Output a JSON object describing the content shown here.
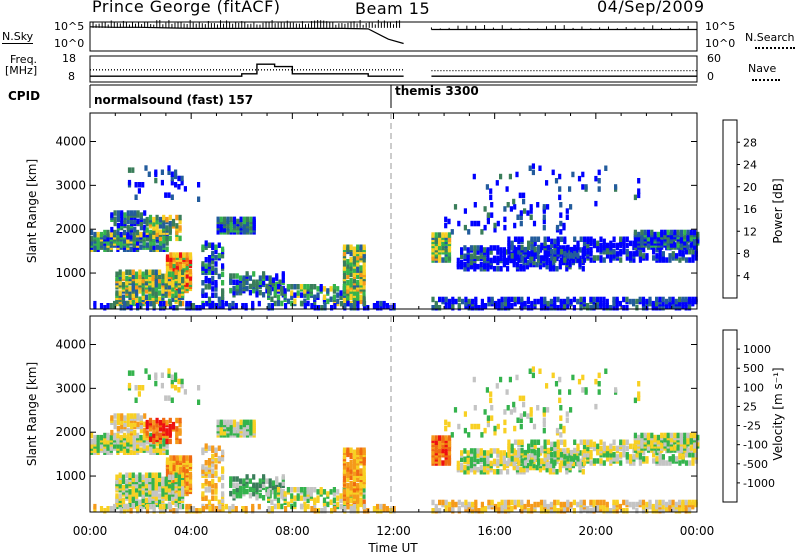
{
  "header": {
    "station": "Prince George (fitACF)",
    "beam": "Beam 15",
    "date": "04/Sep/2009"
  },
  "panel_labels": {
    "nsky": "N.Sky",
    "nsearch": "N.Search",
    "freq_line1": "Freq.",
    "freq_line2": "[MHz]",
    "nave": "Nave",
    "cpid": "CPID",
    "cpid_1": "normalsound (fast) 157",
    "cpid_2": "themis 3300",
    "nsky_tick_hi": "10^5",
    "nsky_tick_lo": "10^0",
    "nsearch_tick_hi": "10^5",
    "nsearch_tick_lo": "10^0"
  },
  "colors": {
    "power": [
      "#0000ff",
      "#235c9c",
      "#3a7d5a",
      "#34b34d",
      "#f8d023",
      "#f59a1a",
      "#f06a10",
      "#ee1010"
    ],
    "velocity": [
      "#ee1010",
      "#f06a10",
      "#f59a1a",
      "#f8d023",
      "#c4c4c4",
      "#34b34d",
      "#3a7d5a",
      "#235c9c",
      "#0000ff"
    ]
  },
  "chart_data": [
    {
      "type": "line",
      "panel": "noise",
      "y_left_label": "N.Sky",
      "y_right_label": "N.Search",
      "x_range_hours": [
        0,
        24
      ],
      "gap_hours": [
        12.4,
        13.5
      ],
      "series": [
        {
          "name": "N.Sky",
          "x": [
            0,
            1,
            2,
            3,
            4,
            5,
            6,
            7,
            8,
            9,
            10,
            11,
            11.8,
            12.4
          ],
          "y": [
            4.3,
            4.2,
            4.2,
            4.1,
            4.0,
            4.0,
            4.0,
            4.0,
            4.0,
            4.0,
            4.0,
            3.9,
            2.0,
            1.2
          ]
        },
        {
          "name": "N.Search",
          "x": [
            13.5,
            15,
            17,
            19,
            21,
            23,
            24
          ],
          "y": [
            3.8,
            3.8,
            3.8,
            3.8,
            3.8,
            3.8,
            3.8
          ]
        }
      ]
    },
    {
      "type": "line",
      "panel": "frequency",
      "y_left_label": "Freq. [MHz]",
      "y_left_ticks": [
        "18",
        "8"
      ],
      "y_right_label": "Nave",
      "y_right_ticks": [
        "60",
        "0"
      ],
      "series": [
        {
          "name": "Freq.",
          "x": [
            0,
            3,
            5,
            6,
            6.6,
            7.3,
            8,
            9,
            10,
            11,
            12.4
          ],
          "y": [
            10,
            10,
            10,
            11,
            15,
            14,
            11,
            11,
            11,
            10,
            10
          ]
        },
        {
          "name": "Nave",
          "x": [
            0,
            6,
            7,
            8,
            12.4,
            13.5,
            24
          ],
          "y": [
            28,
            28,
            30,
            28,
            26,
            26,
            26
          ]
        }
      ]
    },
    {
      "type": "heatmap",
      "panel": "power",
      "ylabel": "Slant Range [km]",
      "yticks": [
        "1000",
        "2000",
        "3000",
        "4000"
      ],
      "ylim": [
        180,
        4650
      ],
      "colorbar_label": "Power [dB]",
      "colorbar_ticks": [
        "4",
        "8",
        "12",
        "16",
        "20",
        "24",
        "28"
      ],
      "features": [
        {
          "t": [
            0,
            4
          ],
          "r": [
            1500,
            2400
          ],
          "level": "mixed"
        },
        {
          "t": [
            5,
            6.5
          ],
          "r": [
            1950,
            2250
          ],
          "level": "low"
        },
        {
          "t": [
            1,
            4
          ],
          "r": [
            300,
            1100
          ],
          "level": "mixed"
        },
        {
          "t": [
            3,
            4
          ],
          "r": [
            700,
            1500
          ],
          "level": "high"
        },
        {
          "t": [
            13.5,
            24
          ],
          "r": [
            200,
            400
          ],
          "level": "low"
        },
        {
          "t": [
            13.5,
            24
          ],
          "r": [
            1000,
            2000
          ],
          "level": "low"
        }
      ]
    },
    {
      "type": "heatmap",
      "panel": "velocity",
      "ylabel": "Slant Range [km]",
      "yticks": [
        "1000",
        "2000",
        "3000",
        "4000"
      ],
      "ylim": [
        180,
        4650
      ],
      "colorbar_label": "Velocity [m s⁻¹]",
      "colorbar_ticks": [
        "1000",
        "500",
        "100",
        "25",
        "-25",
        "-100",
        "-500",
        "-1000"
      ]
    }
  ],
  "x_axis": {
    "ticks": [
      "00:00",
      "04:00",
      "08:00",
      "12:00",
      "16:00",
      "20:00",
      "00:00"
    ],
    "label": "Time UT"
  }
}
